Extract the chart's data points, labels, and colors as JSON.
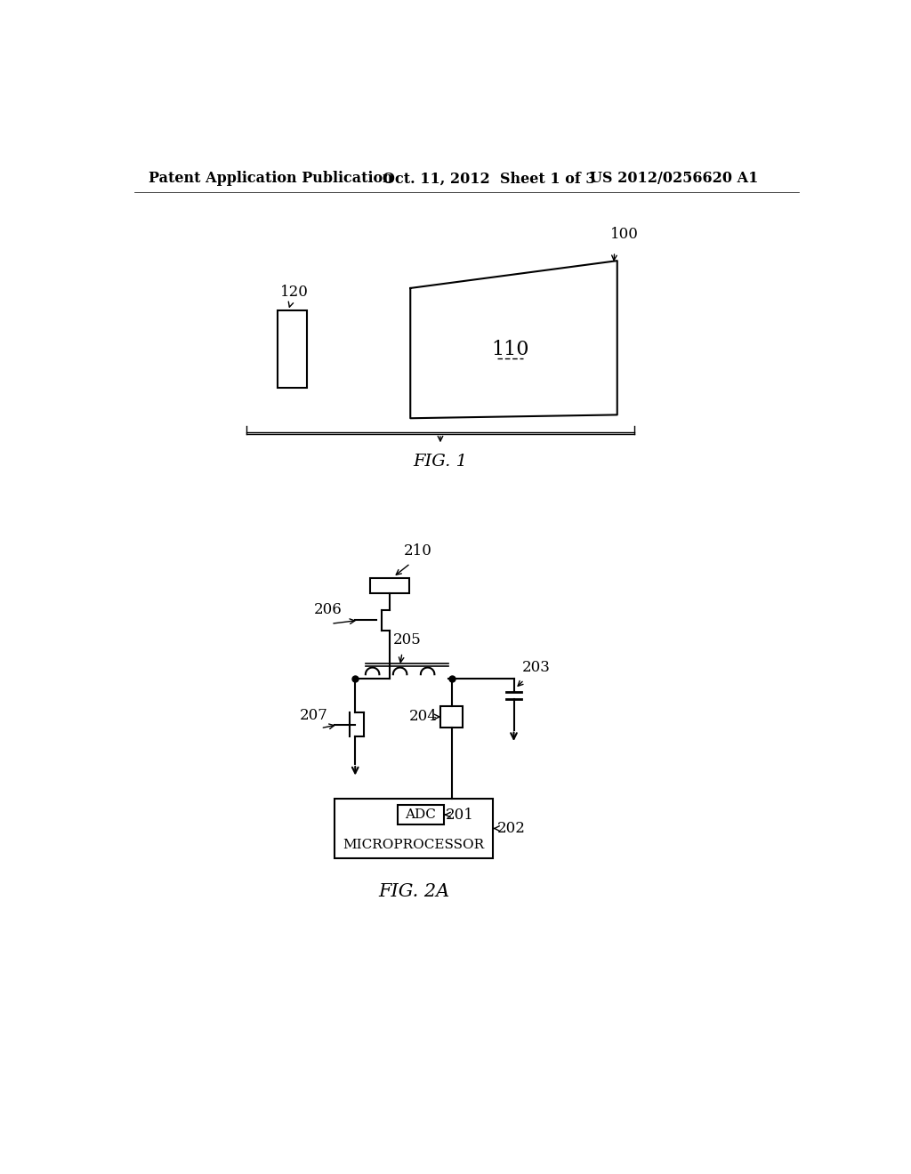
{
  "background_color": "#ffffff",
  "header_left": "Patent Application Publication",
  "header_center": "Oct. 11, 2012  Sheet 1 of 3",
  "header_right": "US 2012/0256620 A1",
  "fig1_label": "FIG. 1",
  "fig2_label": "FIG. 2A",
  "label_100": "100",
  "label_110": "110",
  "label_120": "120",
  "label_201": "201",
  "label_202": "202",
  "label_203": "203",
  "label_204": "204",
  "label_205": "205",
  "label_206": "206",
  "label_207": "207",
  "label_210": "210",
  "label_adc": "ADC",
  "label_microprocessor": "MICROPROCESSOR"
}
